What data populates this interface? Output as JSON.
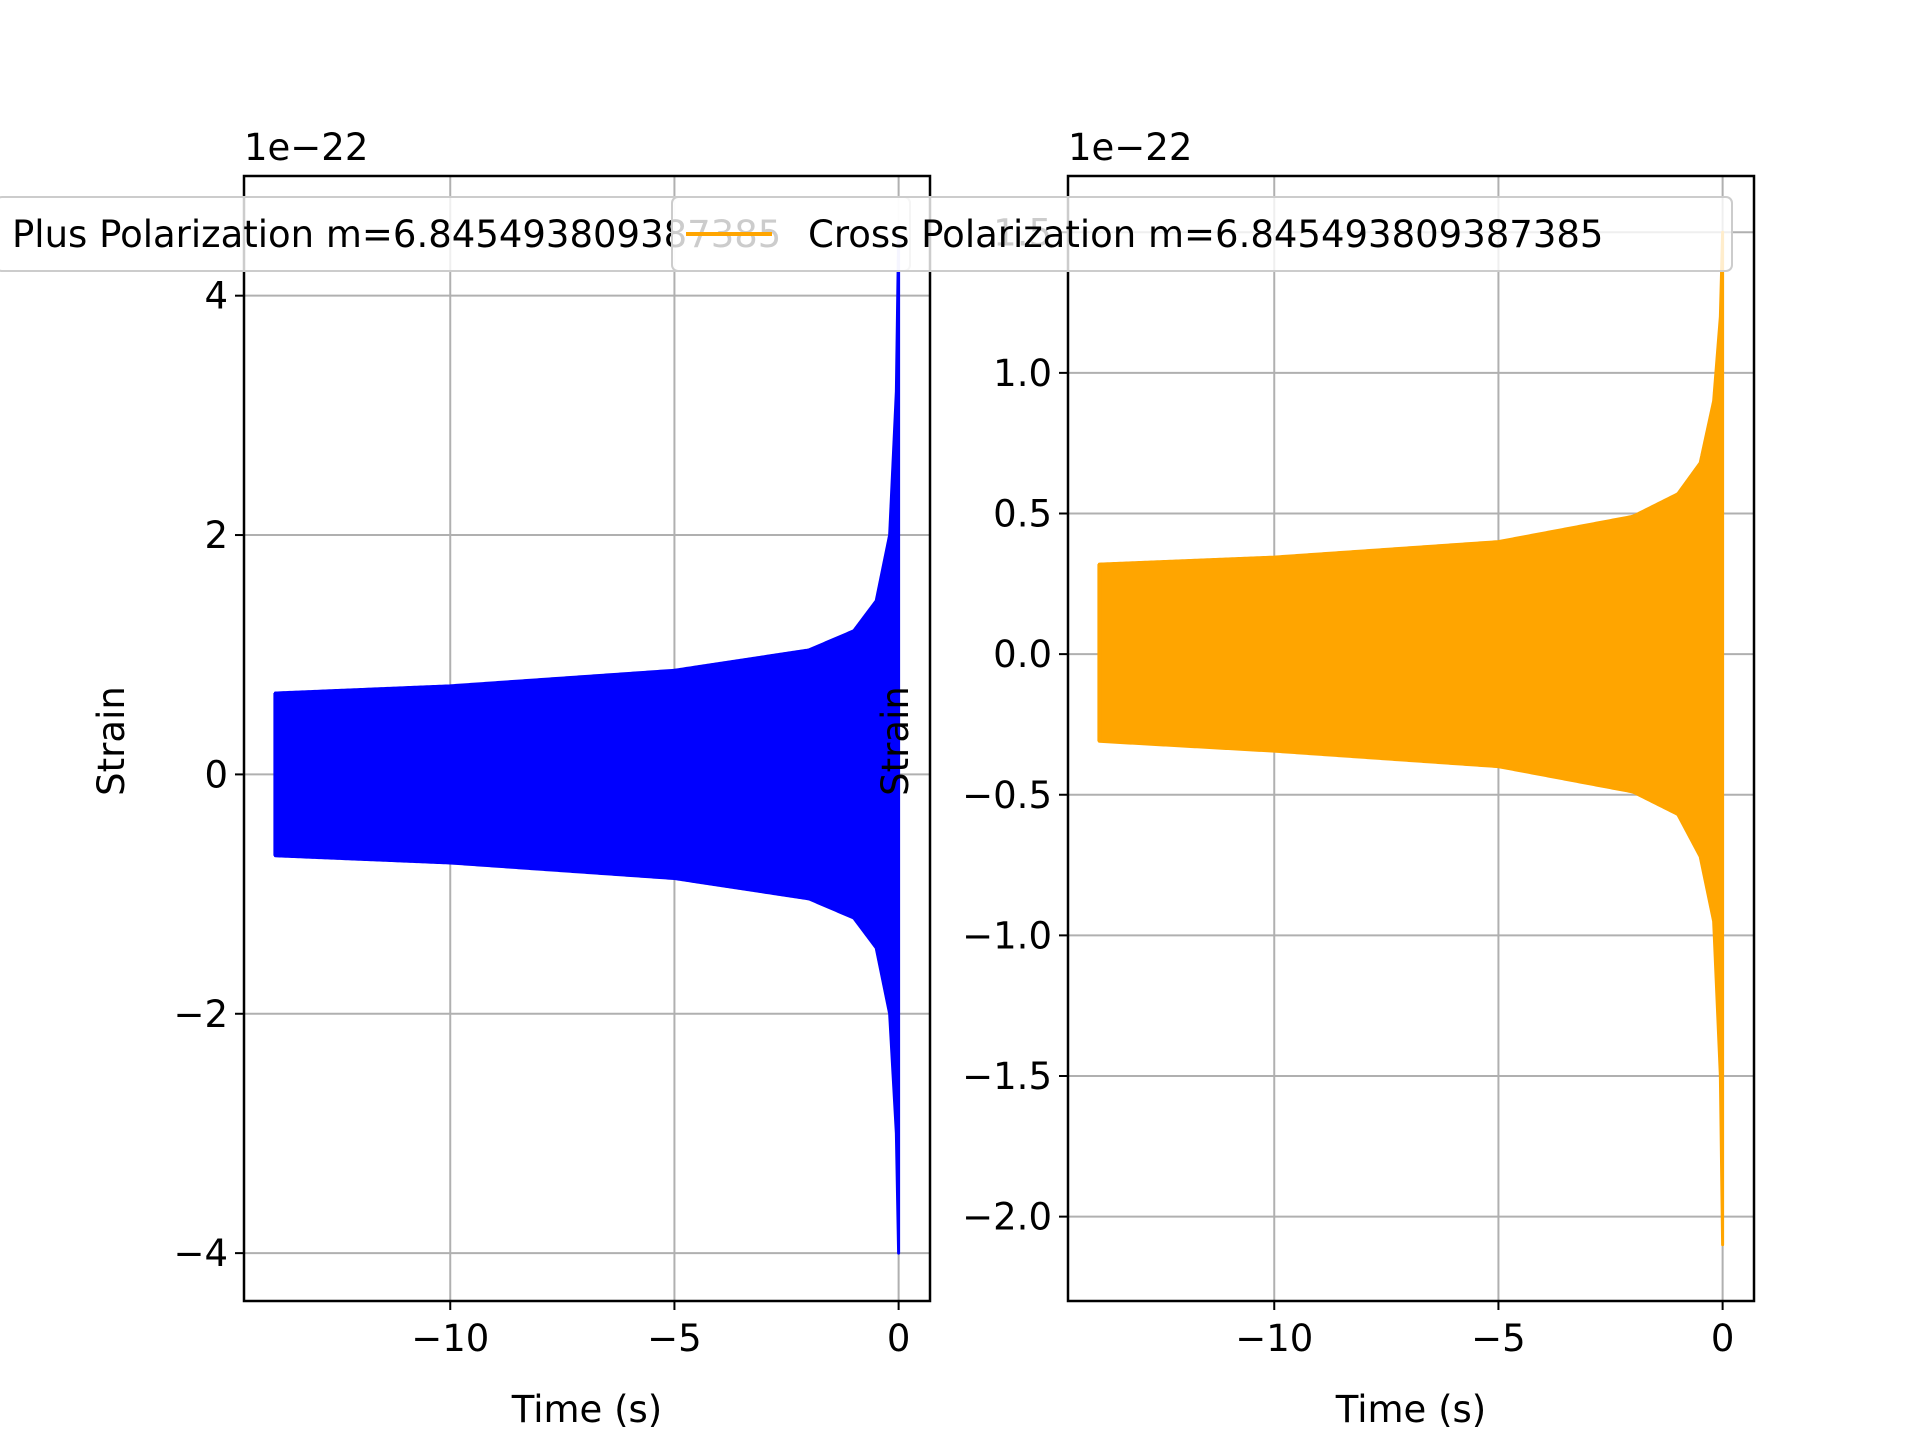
{
  "chart_data": [
    {
      "type": "line",
      "title": "",
      "xlabel": "Time (s)",
      "ylabel": "Strain",
      "offset_label": "1e−22",
      "xlim": [
        -14.6,
        0.7
      ],
      "ylim": [
        -4.4,
        5.0
      ],
      "xticks": [
        -10,
        -5,
        0
      ],
      "xtick_labels": [
        "−10",
        "−5",
        "0"
      ],
      "yticks": [
        -4,
        -2,
        0,
        2,
        4
      ],
      "ytick_labels": [
        "−4",
        "−2",
        "0",
        "2",
        "4"
      ],
      "grid": true,
      "legend": {
        "position": "top",
        "entries": [
          "Plus Polarization m=6.845493809387385"
        ]
      },
      "series": [
        {
          "name": "Plus Polarization m=6.845493809387385",
          "color": "#0000ff",
          "style": "filled-envelope",
          "t_start": -13.9,
          "t_end": 0,
          "envelope": [
            [
              -13.9,
              0.68
            ],
            [
              -10,
              0.74
            ],
            [
              -5,
              0.87
            ],
            [
              -2,
              1.04
            ],
            [
              -1,
              1.2
            ],
            [
              -0.5,
              1.45
            ],
            [
              -0.2,
              2.0
            ],
            [
              -0.05,
              3.2
            ],
            [
              0,
              4.5
            ]
          ],
          "lower_envelope": [
            [
              -13.9,
              -0.68
            ],
            [
              -10,
              -0.74
            ],
            [
              -5,
              -0.87
            ],
            [
              -2,
              -1.04
            ],
            [
              -1,
              -1.2
            ],
            [
              -0.5,
              -1.45
            ],
            [
              -0.2,
              -2.0
            ],
            [
              -0.05,
              -3.0
            ],
            [
              0,
              -4.0
            ]
          ]
        }
      ]
    },
    {
      "type": "line",
      "title": "",
      "xlabel": "Time (s)",
      "ylabel": "Strain",
      "offset_label": "1e−22",
      "xlim": [
        -14.6,
        0.7
      ],
      "ylim": [
        -2.3,
        1.7
      ],
      "xticks": [
        -10,
        -5,
        0
      ],
      "xtick_labels": [
        "−10",
        "−5",
        "0"
      ],
      "yticks": [
        -2.0,
        -1.5,
        -1.0,
        -0.5,
        0.0,
        0.5,
        1.0,
        1.5
      ],
      "ytick_labels": [
        "−2.0",
        "−1.5",
        "−1.0",
        "−0.5",
        "0.0",
        "0.5",
        "1.0",
        "1.5"
      ],
      "grid": true,
      "legend": {
        "position": "top",
        "entries": [
          "Cross Polarization m=6.845493809387385"
        ]
      },
      "series": [
        {
          "name": "Cross Polarization m=6.845493809387385",
          "color": "#ffa500",
          "style": "filled-envelope",
          "t_start": -13.9,
          "t_end": 0,
          "envelope": [
            [
              -13.9,
              0.32
            ],
            [
              -10,
              0.345
            ],
            [
              -5,
              0.4
            ],
            [
              -2,
              0.49
            ],
            [
              -1,
              0.57
            ],
            [
              -0.5,
              0.68
            ],
            [
              -0.2,
              0.9
            ],
            [
              -0.05,
              1.2
            ],
            [
              0,
              1.5
            ]
          ],
          "lower_envelope": [
            [
              -13.9,
              -0.31
            ],
            [
              -10,
              -0.345
            ],
            [
              -5,
              -0.4
            ],
            [
              -2,
              -0.49
            ],
            [
              -1,
              -0.57
            ],
            [
              -0.5,
              -0.72
            ],
            [
              -0.2,
              -0.95
            ],
            [
              -0.05,
              -1.5
            ],
            [
              0,
              -2.1
            ]
          ]
        }
      ]
    }
  ]
}
